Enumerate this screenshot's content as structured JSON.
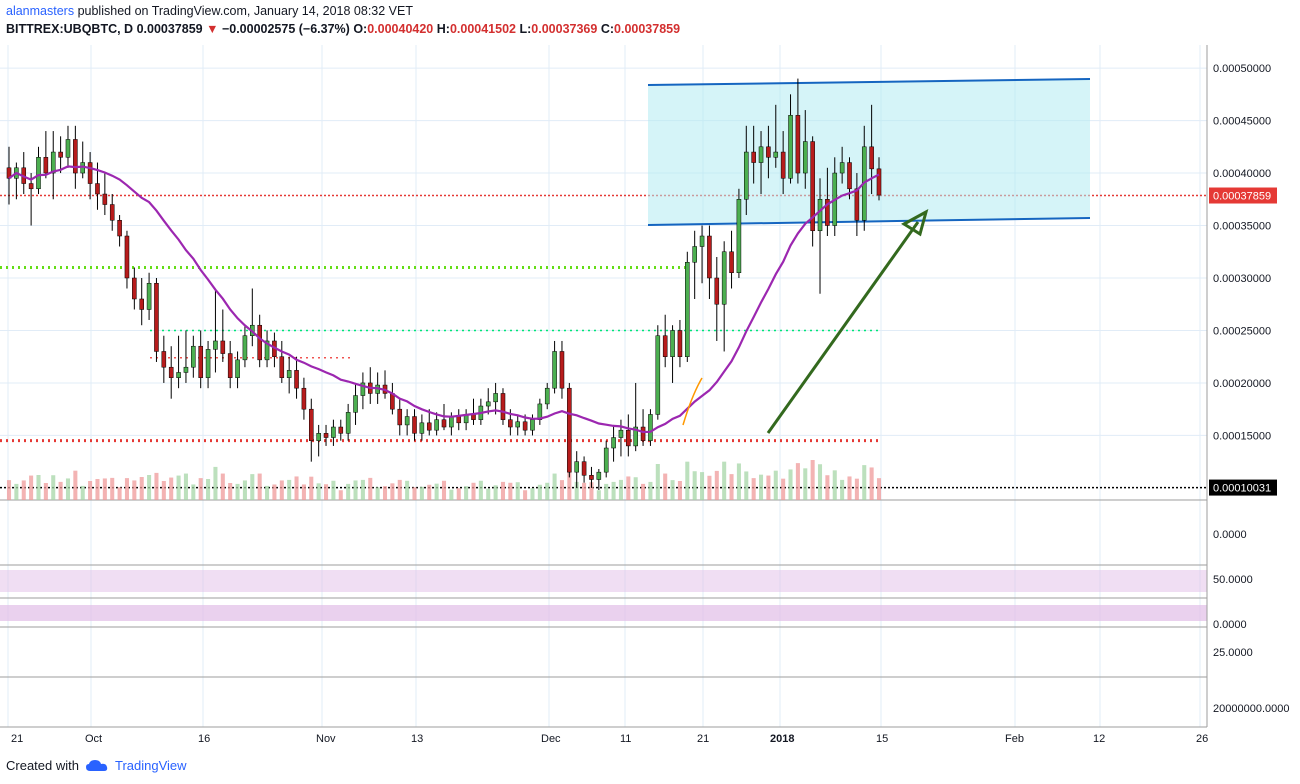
{
  "header": {
    "author": "alanmasters",
    "published_text": "published on TradingView.com, January 14, 2018 08:32 VET",
    "symbol": "BITTREX:UBQBTC, D",
    "last": "0.00037859",
    "change": "−0.00002575 (−6.37%)",
    "o_label": "O:",
    "o": "0.00040420",
    "h_label": "H:",
    "h": "0.00041502",
    "l_label": "L:",
    "l": "0.00037369",
    "c_label": "C:",
    "c": "0.00037859"
  },
  "footer": {
    "created_with": "Created with",
    "brand": "TradingView"
  },
  "colors": {
    "up": "#4caf50",
    "down": "#b71c1c",
    "ma": "#9c27b0",
    "channel": "#1565c0",
    "channel_fill": "#b2ebf2",
    "arrow": "#33691e"
  },
  "chart_data": {
    "type": "candlestick",
    "price_axis": {
      "ticks": [
        "0.00050000",
        "0.00045000",
        "0.00040000",
        "0.00035000",
        "0.00030000",
        "0.00025000",
        "0.00020000",
        "0.00015000"
      ],
      "ylim": [
        9.8e-05,
        0.000522
      ]
    },
    "last_price_label": "0.00037859",
    "support_label": "0.00010031",
    "time_axis": {
      "labels": [
        "21",
        "Oct",
        "16",
        "Nov",
        "13",
        "Dec",
        "11",
        "21",
        "2018",
        "15",
        "Feb",
        "12",
        "26"
      ]
    },
    "horizontal_levels": [
      {
        "value": 0.00031,
        "style": "dotted",
        "color": "#64dd17"
      },
      {
        "value": 0.00025,
        "style": "dotted",
        "color": "#00e676"
      },
      {
        "value": 0.000224,
        "style": "dotted",
        "color": "#ef5350"
      },
      {
        "value": 0.000145,
        "style": "dotted",
        "color": "#e53935"
      },
      {
        "value": 0.00010031,
        "style": "dotted",
        "color": "#000000"
      },
      {
        "value": 0.00037859,
        "style": "dotted",
        "color": "#e53935"
      }
    ],
    "indicator_panes": [
      {
        "name": "macd",
        "tick": "0.0000"
      },
      {
        "name": "rsi",
        "tick": "50.0000"
      },
      {
        "name": "stoch",
        "tick": "0.0000"
      },
      {
        "name": "dmi",
        "tick": "25.0000"
      },
      {
        "name": "obv",
        "tick": "20000000.0000"
      }
    ],
    "candles": [
      {
        "o": 0.000405,
        "h": 0.000425,
        "l": 0.00037,
        "c": 0.000395
      },
      {
        "o": 0.000395,
        "h": 0.00041,
        "l": 0.000375,
        "c": 0.000405
      },
      {
        "o": 0.000405,
        "h": 0.00042,
        "l": 0.00038,
        "c": 0.00039
      },
      {
        "o": 0.00039,
        "h": 0.0004,
        "l": 0.00035,
        "c": 0.000385
      },
      {
        "o": 0.000385,
        "h": 0.000425,
        "l": 0.00038,
        "c": 0.000415
      },
      {
        "o": 0.000415,
        "h": 0.00044,
        "l": 0.000395,
        "c": 0.0004
      },
      {
        "o": 0.0004,
        "h": 0.00044,
        "l": 0.000375,
        "c": 0.00042
      },
      {
        "o": 0.00042,
        "h": 0.000435,
        "l": 0.0004,
        "c": 0.000415
      },
      {
        "o": 0.000415,
        "h": 0.000445,
        "l": 0.000405,
        "c": 0.000432
      },
      {
        "o": 0.000432,
        "h": 0.000445,
        "l": 0.000385,
        "c": 0.0004
      },
      {
        "o": 0.0004,
        "h": 0.00043,
        "l": 0.000395,
        "c": 0.00041
      },
      {
        "o": 0.00041,
        "h": 0.00042,
        "l": 0.000375,
        "c": 0.00039
      },
      {
        "o": 0.00039,
        "h": 0.00041,
        "l": 0.000365,
        "c": 0.00038
      },
      {
        "o": 0.00038,
        "h": 0.0004,
        "l": 0.00036,
        "c": 0.00037
      },
      {
        "o": 0.00037,
        "h": 0.00038,
        "l": 0.000345,
        "c": 0.000355
      },
      {
        "o": 0.000355,
        "h": 0.00036,
        "l": 0.00033,
        "c": 0.00034
      },
      {
        "o": 0.00034,
        "h": 0.000345,
        "l": 0.00029,
        "c": 0.0003
      },
      {
        "o": 0.0003,
        "h": 0.00031,
        "l": 0.00027,
        "c": 0.00028
      },
      {
        "o": 0.00028,
        "h": 0.0003,
        "l": 0.000255,
        "c": 0.00027
      },
      {
        "o": 0.00027,
        "h": 0.000305,
        "l": 0.00026,
        "c": 0.000295
      },
      {
        "o": 0.000295,
        "h": 0.0003,
        "l": 0.00022,
        "c": 0.00023
      },
      {
        "o": 0.00023,
        "h": 0.000245,
        "l": 0.0002,
        "c": 0.000215
      },
      {
        "o": 0.000215,
        "h": 0.000235,
        "l": 0.000185,
        "c": 0.000205
      },
      {
        "o": 0.000205,
        "h": 0.000245,
        "l": 0.000195,
        "c": 0.00021
      },
      {
        "o": 0.00021,
        "h": 0.00025,
        "l": 0.0002,
        "c": 0.000215
      },
      {
        "o": 0.000215,
        "h": 0.000245,
        "l": 0.000205,
        "c": 0.000235
      },
      {
        "o": 0.000235,
        "h": 0.00025,
        "l": 0.000195,
        "c": 0.000205
      },
      {
        "o": 0.000205,
        "h": 0.00024,
        "l": 0.000195,
        "c": 0.000232
      },
      {
        "o": 0.000232,
        "h": 0.00029,
        "l": 0.00021,
        "c": 0.00024
      },
      {
        "o": 0.00024,
        "h": 0.00027,
        "l": 0.00022,
        "c": 0.000228
      },
      {
        "o": 0.000228,
        "h": 0.00024,
        "l": 0.000195,
        "c": 0.000205
      },
      {
        "o": 0.000205,
        "h": 0.00023,
        "l": 0.000195,
        "c": 0.000222
      },
      {
        "o": 0.000222,
        "h": 0.000255,
        "l": 0.000215,
        "c": 0.000245
      },
      {
        "o": 0.000245,
        "h": 0.00029,
        "l": 0.000235,
        "c": 0.000255
      },
      {
        "o": 0.000255,
        "h": 0.000265,
        "l": 0.000215,
        "c": 0.000222
      },
      {
        "o": 0.000222,
        "h": 0.00025,
        "l": 0.000215,
        "c": 0.00024
      },
      {
        "o": 0.00024,
        "h": 0.000248,
        "l": 0.000215,
        "c": 0.000225
      },
      {
        "o": 0.000225,
        "h": 0.00024,
        "l": 0.0002,
        "c": 0.000205
      },
      {
        "o": 0.000205,
        "h": 0.000225,
        "l": 0.00019,
        "c": 0.000212
      },
      {
        "o": 0.000212,
        "h": 0.000225,
        "l": 0.000185,
        "c": 0.000195
      },
      {
        "o": 0.000195,
        "h": 0.000205,
        "l": 0.000165,
        "c": 0.000175
      },
      {
        "o": 0.000175,
        "h": 0.000185,
        "l": 0.000125,
        "c": 0.000145
      },
      {
        "o": 0.000145,
        "h": 0.00016,
        "l": 0.00013,
        "c": 0.000152
      },
      {
        "o": 0.000152,
        "h": 0.00016,
        "l": 0.00014,
        "c": 0.000148
      },
      {
        "o": 0.000148,
        "h": 0.000165,
        "l": 0.00014,
        "c": 0.000158
      },
      {
        "o": 0.000158,
        "h": 0.000165,
        "l": 0.000145,
        "c": 0.000152
      },
      {
        "o": 0.000152,
        "h": 0.00018,
        "l": 0.000145,
        "c": 0.000172
      },
      {
        "o": 0.000172,
        "h": 0.0002,
        "l": 0.00016,
        "c": 0.000188
      },
      {
        "o": 0.000188,
        "h": 0.00021,
        "l": 0.000175,
        "c": 0.0002
      },
      {
        "o": 0.0002,
        "h": 0.000215,
        "l": 0.00018,
        "c": 0.00019
      },
      {
        "o": 0.00019,
        "h": 0.00021,
        "l": 0.00018,
        "c": 0.000198
      },
      {
        "o": 0.000198,
        "h": 0.000212,
        "l": 0.000185,
        "c": 0.00019
      },
      {
        "o": 0.00019,
        "h": 0.0002,
        "l": 0.00017,
        "c": 0.000175
      },
      {
        "o": 0.000175,
        "h": 0.000185,
        "l": 0.00015,
        "c": 0.00016
      },
      {
        "o": 0.00016,
        "h": 0.000175,
        "l": 0.00015,
        "c": 0.000168
      },
      {
        "o": 0.000168,
        "h": 0.000175,
        "l": 0.000145,
        "c": 0.000152
      },
      {
        "o": 0.000152,
        "h": 0.00017,
        "l": 0.000145,
        "c": 0.000162
      },
      {
        "o": 0.000162,
        "h": 0.000175,
        "l": 0.00015,
        "c": 0.000155
      },
      {
        "o": 0.000155,
        "h": 0.000172,
        "l": 0.00015,
        "c": 0.000165
      },
      {
        "o": 0.000165,
        "h": 0.00018,
        "l": 0.000155,
        "c": 0.000158
      },
      {
        "o": 0.000158,
        "h": 0.000172,
        "l": 0.00015,
        "c": 0.000168
      },
      {
        "o": 0.000168,
        "h": 0.000175,
        "l": 0.000155,
        "c": 0.000162
      },
      {
        "o": 0.000162,
        "h": 0.000175,
        "l": 0.000155,
        "c": 0.00017
      },
      {
        "o": 0.00017,
        "h": 0.000185,
        "l": 0.00016,
        "c": 0.000165
      },
      {
        "o": 0.000165,
        "h": 0.000185,
        "l": 0.00016,
        "c": 0.000178
      },
      {
        "o": 0.000178,
        "h": 0.000195,
        "l": 0.00017,
        "c": 0.000182
      },
      {
        "o": 0.000182,
        "h": 0.0002,
        "l": 0.00017,
        "c": 0.00019
      },
      {
        "o": 0.00019,
        "h": 0.000195,
        "l": 0.00016,
        "c": 0.000165
      },
      {
        "o": 0.000165,
        "h": 0.000175,
        "l": 0.00015,
        "c": 0.000158
      },
      {
        "o": 0.000158,
        "h": 0.00017,
        "l": 0.00015,
        "c": 0.000163
      },
      {
        "o": 0.000163,
        "h": 0.00017,
        "l": 0.00015,
        "c": 0.000155
      },
      {
        "o": 0.000155,
        "h": 0.00017,
        "l": 0.00015,
        "c": 0.000165
      },
      {
        "o": 0.000165,
        "h": 0.000185,
        "l": 0.00016,
        "c": 0.00018
      },
      {
        "o": 0.00018,
        "h": 0.0002,
        "l": 0.000175,
        "c": 0.000195
      },
      {
        "o": 0.000195,
        "h": 0.00024,
        "l": 0.00019,
        "c": 0.00023
      },
      {
        "o": 0.00023,
        "h": 0.00024,
        "l": 0.000185,
        "c": 0.000195
      },
      {
        "o": 0.000195,
        "h": 0.0002,
        "l": 0.00011,
        "c": 0.000115
      },
      {
        "o": 0.000115,
        "h": 0.000135,
        "l": 0.0001,
        "c": 0.000125
      },
      {
        "o": 0.000125,
        "h": 0.00013,
        "l": 0.000105,
        "c": 0.000112
      },
      {
        "o": 0.000112,
        "h": 0.00012,
        "l": 0.0001,
        "c": 0.000108
      },
      {
        "o": 0.000108,
        "h": 0.000118,
        "l": 9.8e-05,
        "c": 0.000115
      },
      {
        "o": 0.000115,
        "h": 0.000145,
        "l": 0.00011,
        "c": 0.000138
      },
      {
        "o": 0.000138,
        "h": 0.00016,
        "l": 0.000125,
        "c": 0.000148
      },
      {
        "o": 0.000148,
        "h": 0.000165,
        "l": 0.00013,
        "c": 0.000155
      },
      {
        "o": 0.000155,
        "h": 0.00017,
        "l": 0.00013,
        "c": 0.00014
      },
      {
        "o": 0.00014,
        "h": 0.0002,
        "l": 0.000135,
        "c": 0.000158
      },
      {
        "o": 0.000158,
        "h": 0.000175,
        "l": 0.00014,
        "c": 0.000145
      },
      {
        "o": 0.000145,
        "h": 0.000175,
        "l": 0.00014,
        "c": 0.00017
      },
      {
        "o": 0.00017,
        "h": 0.000255,
        "l": 0.000165,
        "c": 0.000245
      },
      {
        "o": 0.000245,
        "h": 0.000265,
        "l": 0.000215,
        "c": 0.000225
      },
      {
        "o": 0.000225,
        "h": 0.000255,
        "l": 0.0002,
        "c": 0.00025
      },
      {
        "o": 0.00025,
        "h": 0.00026,
        "l": 0.000215,
        "c": 0.000225
      },
      {
        "o": 0.000225,
        "h": 0.000325,
        "l": 0.00022,
        "c": 0.000315
      },
      {
        "o": 0.000315,
        "h": 0.000345,
        "l": 0.00028,
        "c": 0.00033
      },
      {
        "o": 0.00033,
        "h": 0.00035,
        "l": 0.000295,
        "c": 0.00034
      },
      {
        "o": 0.00034,
        "h": 0.00035,
        "l": 0.00028,
        "c": 0.0003
      },
      {
        "o": 0.0003,
        "h": 0.00032,
        "l": 0.00024,
        "c": 0.000275
      },
      {
        "o": 0.000275,
        "h": 0.000335,
        "l": 0.00023,
        "c": 0.000325
      },
      {
        "o": 0.000325,
        "h": 0.000345,
        "l": 0.00029,
        "c": 0.000305
      },
      {
        "o": 0.000305,
        "h": 0.000385,
        "l": 0.0003,
        "c": 0.000375
      },
      {
        "o": 0.000375,
        "h": 0.000445,
        "l": 0.00036,
        "c": 0.00042
      },
      {
        "o": 0.00042,
        "h": 0.000445,
        "l": 0.00039,
        "c": 0.00041
      },
      {
        "o": 0.00041,
        "h": 0.00044,
        "l": 0.00038,
        "c": 0.000425
      },
      {
        "o": 0.000425,
        "h": 0.000445,
        "l": 0.000395,
        "c": 0.000415
      },
      {
        "o": 0.000415,
        "h": 0.000465,
        "l": 0.000405,
        "c": 0.00042
      },
      {
        "o": 0.00042,
        "h": 0.00044,
        "l": 0.00038,
        "c": 0.000395
      },
      {
        "o": 0.000395,
        "h": 0.000475,
        "l": 0.00039,
        "c": 0.000455
      },
      {
        "o": 0.000455,
        "h": 0.00049,
        "l": 0.00039,
        "c": 0.0004
      },
      {
        "o": 0.0004,
        "h": 0.00046,
        "l": 0.000385,
        "c": 0.00043
      },
      {
        "o": 0.00043,
        "h": 0.000435,
        "l": 0.00033,
        "c": 0.000345
      },
      {
        "o": 0.000345,
        "h": 0.000395,
        "l": 0.000285,
        "c": 0.000375
      },
      {
        "o": 0.000375,
        "h": 0.000405,
        "l": 0.00034,
        "c": 0.00035
      },
      {
        "o": 0.00035,
        "h": 0.000415,
        "l": 0.00034,
        "c": 0.0004
      },
      {
        "o": 0.0004,
        "h": 0.000425,
        "l": 0.00039,
        "c": 0.00041
      },
      {
        "o": 0.00041,
        "h": 0.000415,
        "l": 0.000375,
        "c": 0.000385
      },
      {
        "o": 0.000385,
        "h": 0.0004,
        "l": 0.00034,
        "c": 0.000355
      },
      {
        "o": 0.000355,
        "h": 0.000445,
        "l": 0.000345,
        "c": 0.000425
      },
      {
        "o": 0.000425,
        "h": 0.000465,
        "l": 0.00038,
        "c": 0.000404
      },
      {
        "o": 0.000404,
        "h": 0.000415,
        "l": 0.000374,
        "c": 0.000379
      }
    ]
  }
}
